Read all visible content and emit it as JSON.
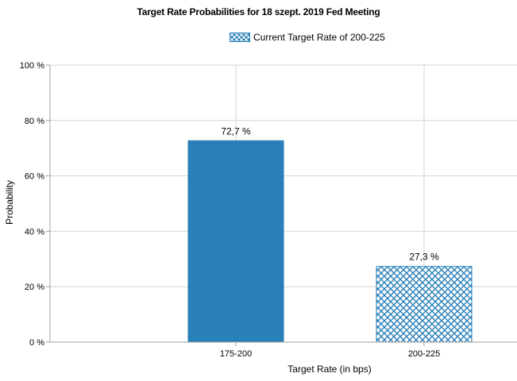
{
  "chart_data": {
    "type": "bar",
    "title": "Target Rate Probabilities for 18 szept. 2019 Fed Meeting",
    "xlabel": "Target Rate (in bps)",
    "ylabel": "Probability",
    "categories": [
      "175-200",
      "200-225"
    ],
    "values": [
      72.7,
      27.3
    ],
    "value_labels": [
      "72,7 %",
      "27,3 %"
    ],
    "ylim": [
      0,
      100
    ],
    "y_ticks": [
      0,
      20,
      40,
      60,
      80,
      100
    ],
    "y_tick_labels": [
      "0 %",
      "20 %",
      "40 %",
      "60 %",
      "80 %",
      "100 %"
    ],
    "legend": {
      "entries": [
        "Current Target Rate of 200-225"
      ],
      "placement": "top-center"
    },
    "grid": true,
    "colors": {
      "bar": "#2980b9",
      "hatch_line": "#2980b9",
      "grid": "#d4d4d4",
      "axis": "#a0a0a0"
    },
    "bar_fills": [
      "solid",
      "crosshatch"
    ]
  }
}
